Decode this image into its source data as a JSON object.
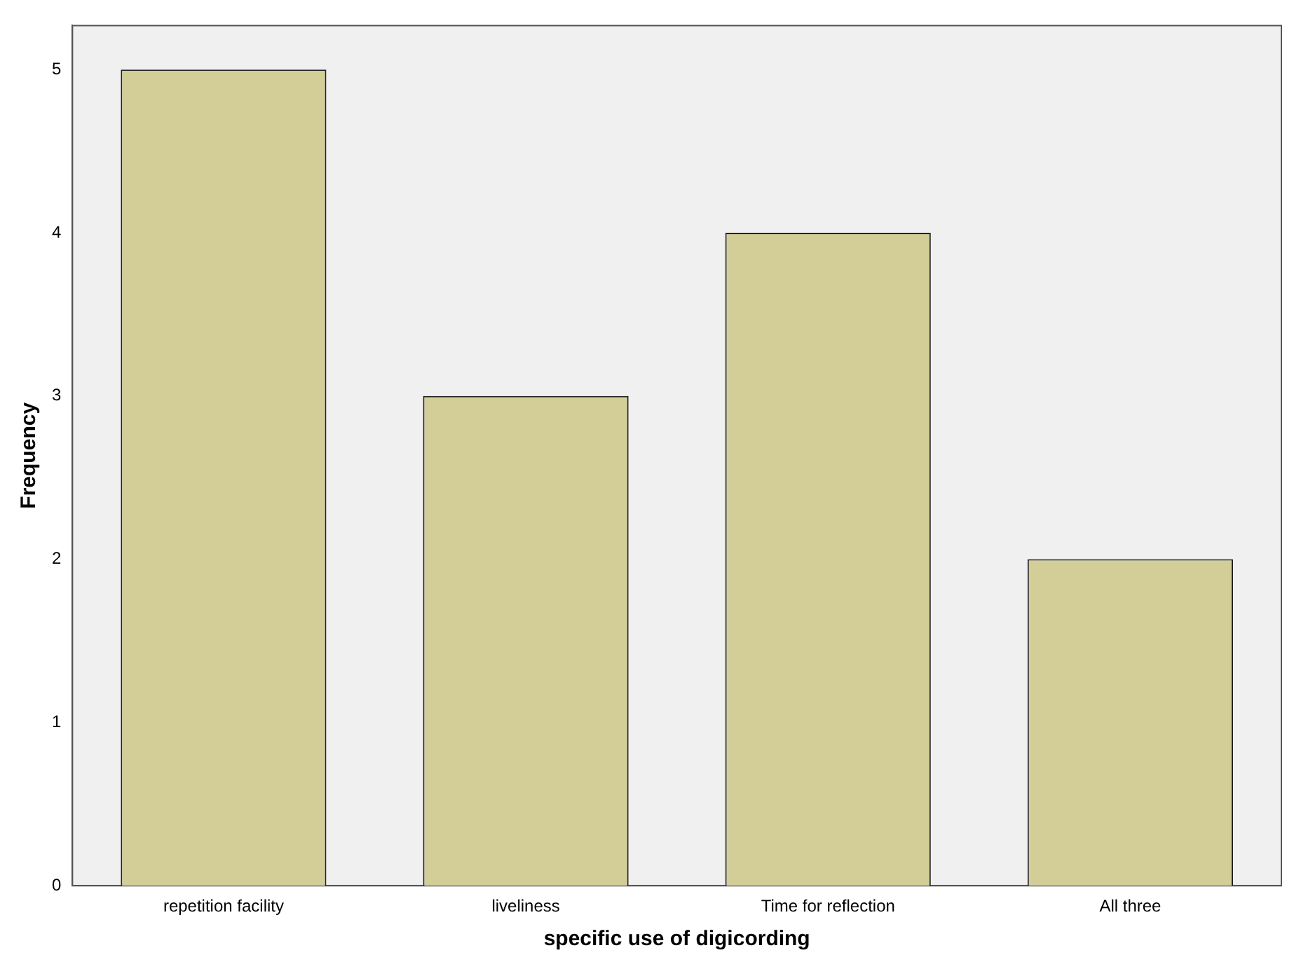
{
  "chart_data": {
    "type": "bar",
    "xlabel": "specific use of digicording",
    "ylabel": "Frequency",
    "categories": [
      "repetition facility",
      "liveliness",
      "Time for reflection",
      "All three"
    ],
    "values": [
      5,
      3,
      4,
      2
    ],
    "color": "#d3ce97",
    "ylim": [
      0,
      5.27
    ],
    "yticks": [
      0,
      1,
      2,
      3,
      4,
      5
    ],
    "grid": false,
    "legend": false
  }
}
